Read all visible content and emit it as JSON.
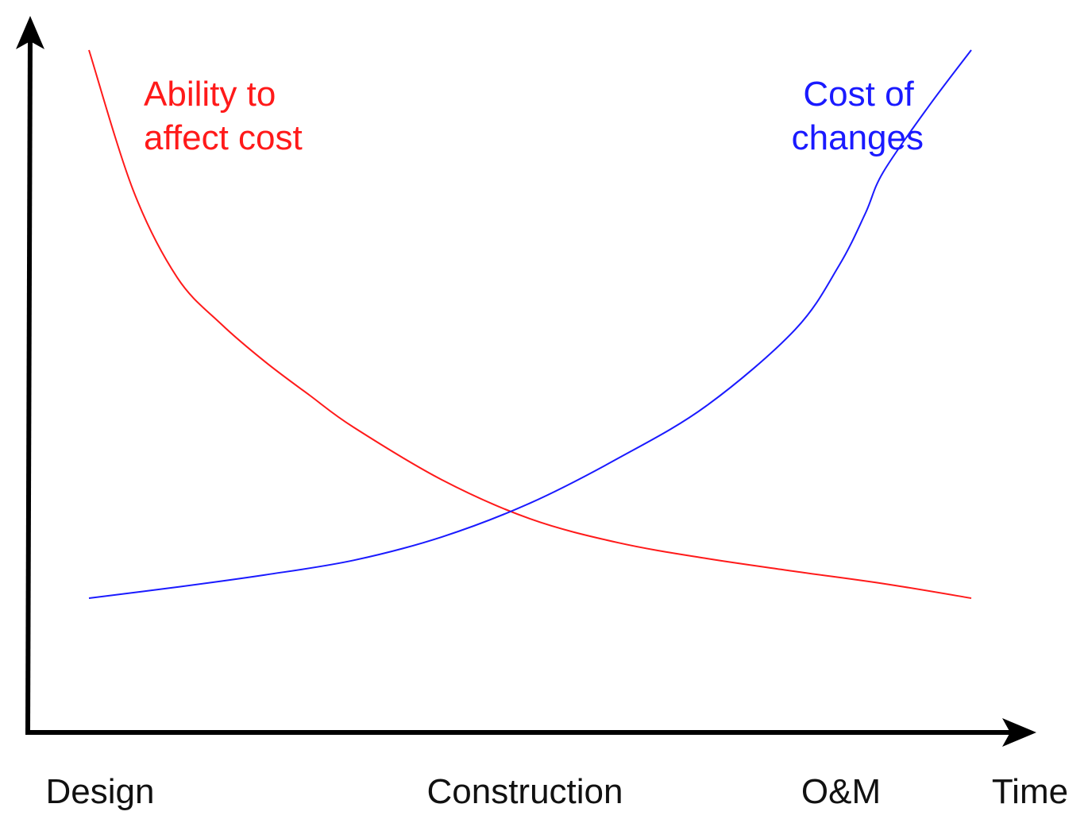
{
  "chart_data": {
    "type": "line",
    "xlabel": "Time",
    "ylabel": "",
    "categories": [
      "Design",
      "Construction",
      "O&M"
    ],
    "x_ticks": [
      0,
      50,
      85
    ],
    "xlim": [
      0,
      100
    ],
    "ylim": [
      0,
      100
    ],
    "grid": false,
    "legend": "inline",
    "series": [
      {
        "name_lines": [
          "Ability to",
          "affect cost"
        ],
        "color": "#ff1a1a",
        "x": [
          0,
          5,
          10,
          15,
          20,
          25,
          30,
          40,
          50,
          60,
          70,
          80,
          90,
          100
        ],
        "y": [
          100,
          76,
          61,
          53,
          46.5,
          40.8,
          35.3,
          26.3,
          19.6,
          15.5,
          12.8,
          10.6,
          8.5,
          6
        ]
      },
      {
        "name_lines": [
          "Cost of",
          "changes"
        ],
        "color": "#1a1aff",
        "x": [
          0,
          10,
          20,
          30,
          40,
          50,
          60,
          70,
          80,
          85,
          88,
          90,
          95,
          100
        ],
        "y": [
          6,
          7.9,
          10,
          12.5,
          16.5,
          22.3,
          30,
          39,
          52,
          63,
          72,
          79,
          90,
          100
        ]
      }
    ]
  }
}
